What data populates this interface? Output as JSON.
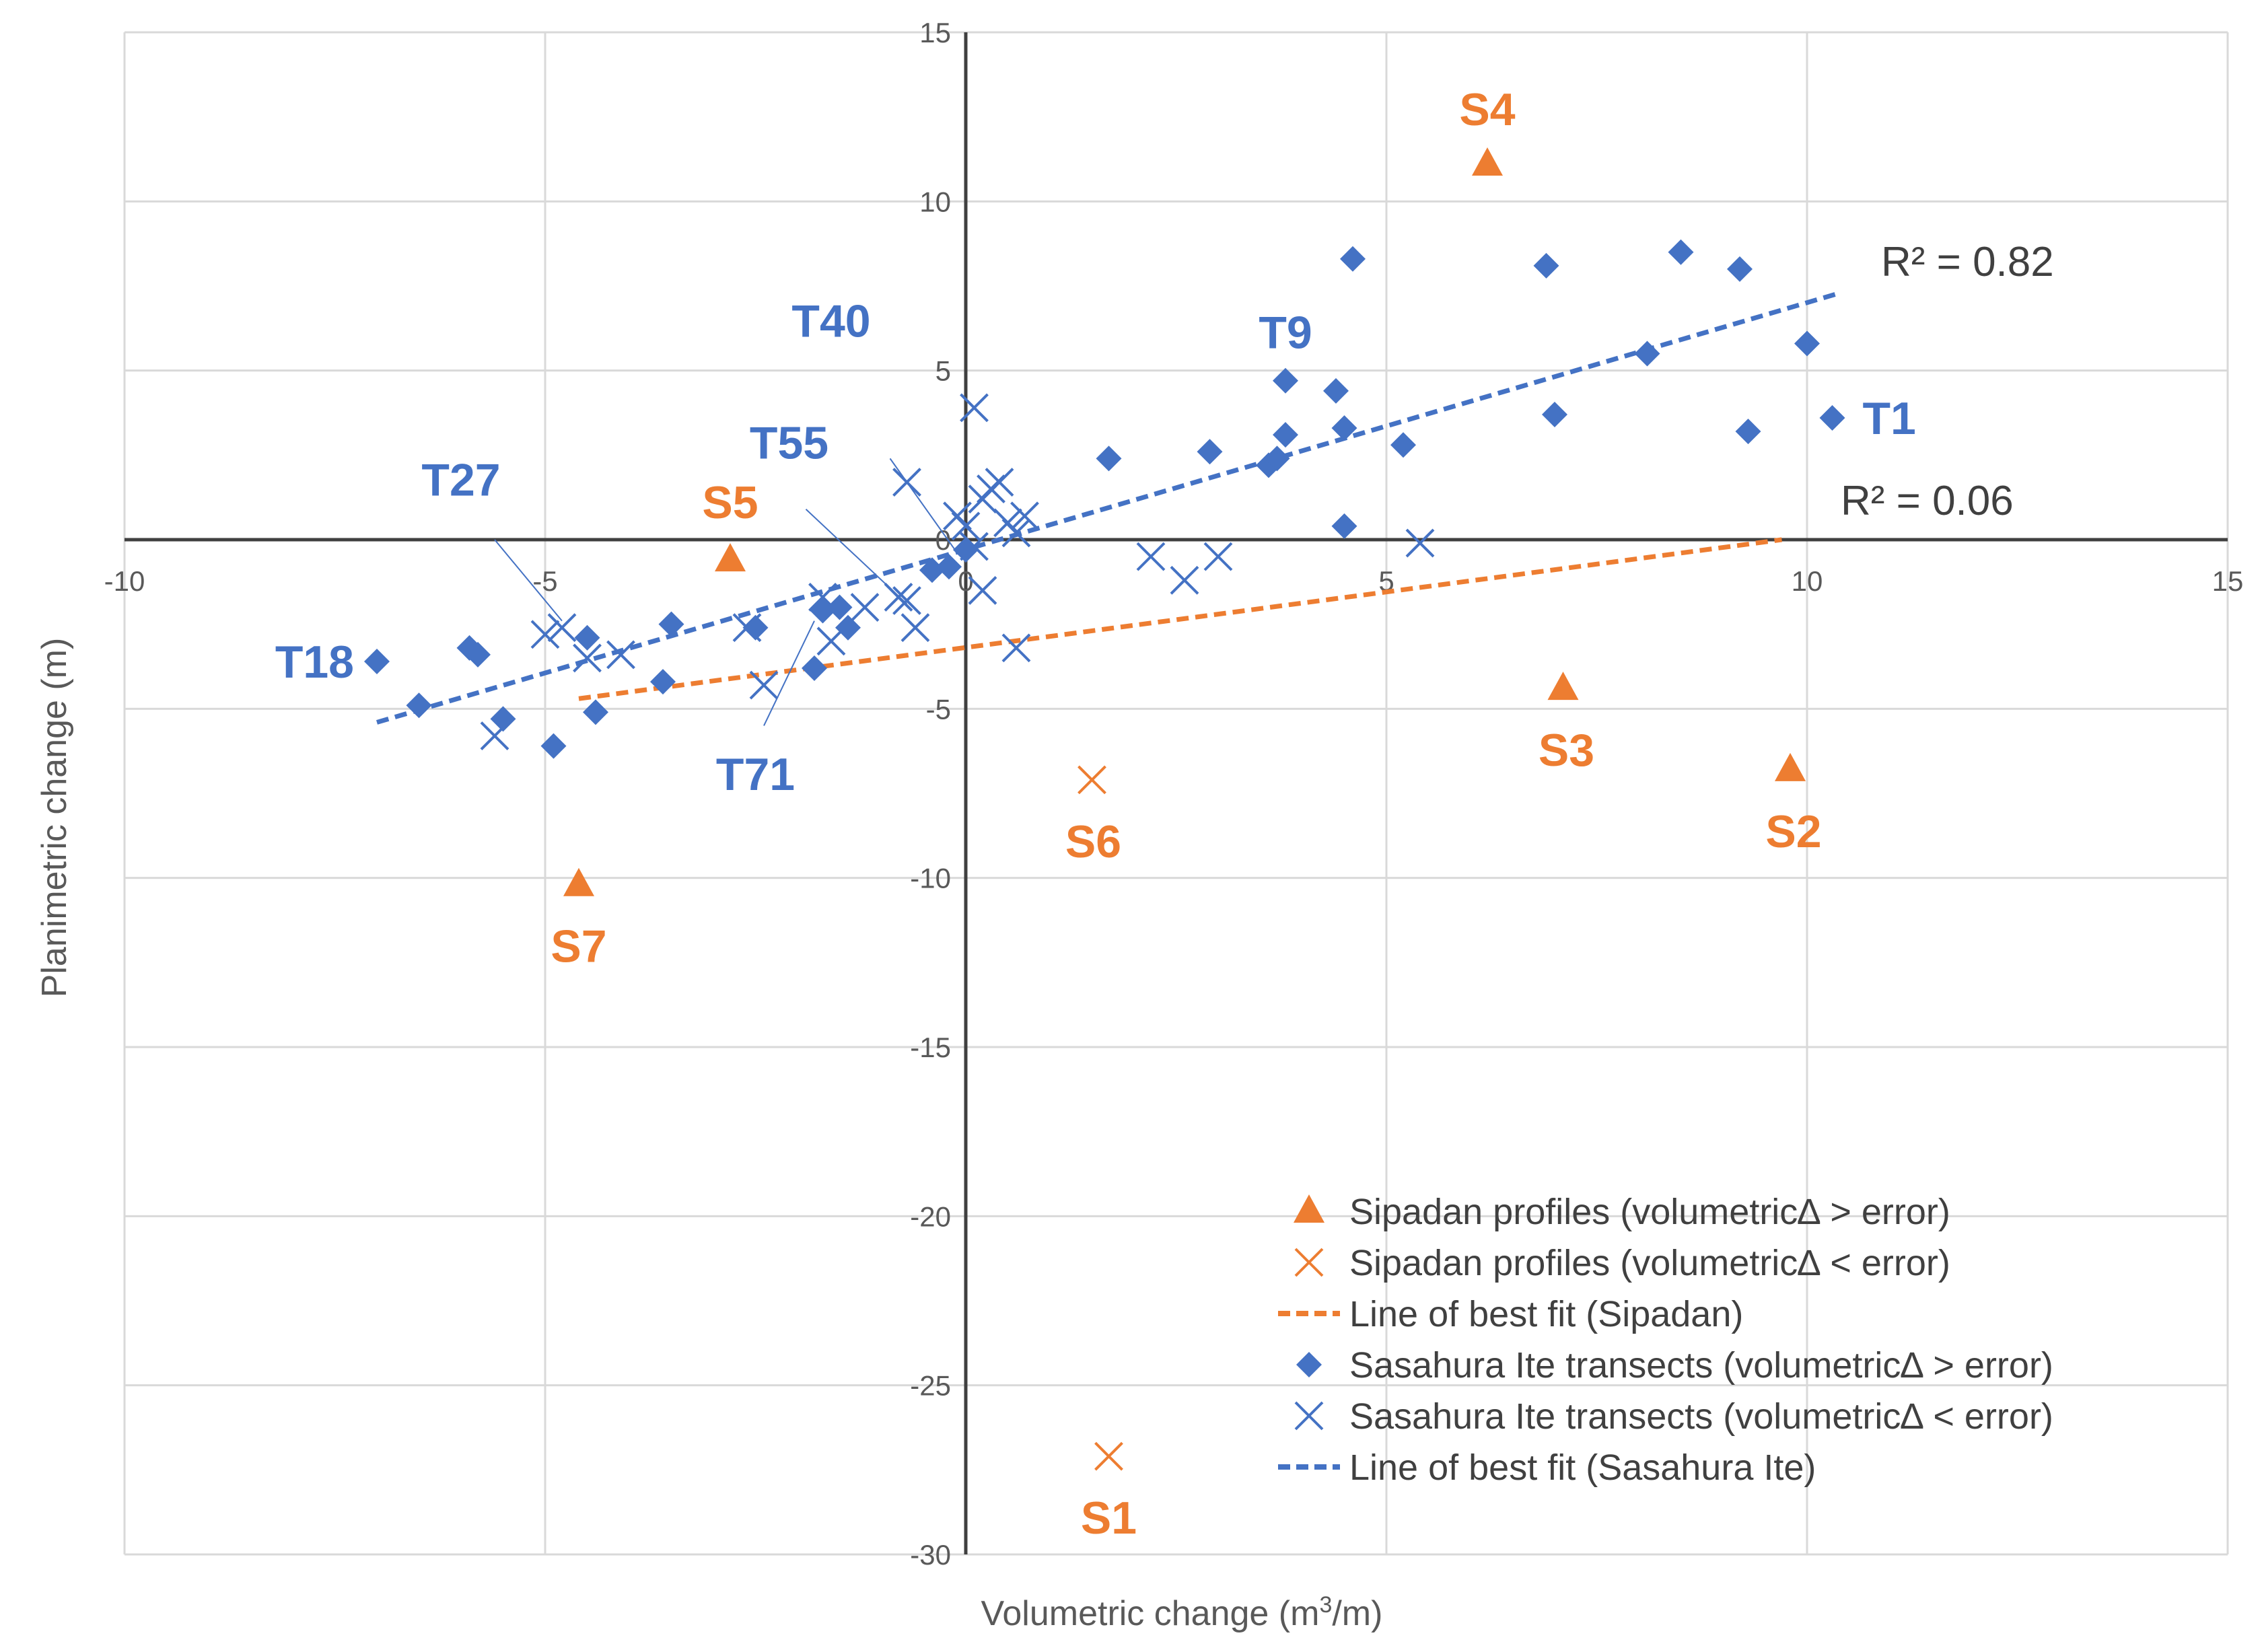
{
  "chart_data": {
    "type": "scatter",
    "xlabel_prefix": "Volumetric change (m",
    "xlabel_sup": "3",
    "xlabel_suffix": "/m)",
    "ylabel": "Planimetric change (m)",
    "xlim": [
      -10,
      15
    ],
    "ylim": [
      -30,
      15
    ],
    "x_ticks": [
      -10,
      -5,
      0,
      5,
      10,
      15
    ],
    "y_ticks": [
      15,
      10,
      5,
      0,
      -5,
      -10,
      -15,
      -20,
      -25,
      -30
    ],
    "grid": true,
    "colors": {
      "blue": "#4472C4",
      "orange": "#ED7D31",
      "grid": "#D9D9D9",
      "axis": "#404040"
    },
    "series": [
      {
        "name": "Sipadan profiles (volumetric∆ > error)",
        "marker": "triangle",
        "color": "#ED7D31",
        "points": [
          [
            6.2,
            11.1
          ],
          [
            9.8,
            -6.8
          ],
          [
            7.1,
            -4.4
          ],
          [
            -2.8,
            -0.6
          ],
          [
            -4.6,
            -10.2
          ]
        ]
      },
      {
        "name": "Sipadan profiles (volumetric∆ < error)",
        "marker": "x",
        "color": "#ED7D31",
        "points": [
          [
            1.5,
            -7.1
          ],
          [
            1.7,
            -27.1
          ]
        ]
      },
      {
        "name": "Line of best fit (Sipadan)",
        "marker": "dashed-line",
        "color": "#ED7D31",
        "line": [
          [
            -4.6,
            -4.7
          ],
          [
            9.7,
            0.0
          ]
        ]
      },
      {
        "name": "Sasahura Ite transects (volumetric∆ > error)",
        "marker": "diamond",
        "color": "#4472C4",
        "points": [
          [
            -7.0,
            -3.6
          ],
          [
            -6.5,
            -4.9
          ],
          [
            -5.9,
            -3.2
          ],
          [
            -5.8,
            -3.4
          ],
          [
            -5.5,
            -5.3
          ],
          [
            -4.9,
            -6.1
          ],
          [
            -4.5,
            -2.9
          ],
          [
            -4.4,
            -5.1
          ],
          [
            -3.6,
            -4.2
          ],
          [
            -3.5,
            -2.5
          ],
          [
            -2.5,
            -2.6
          ],
          [
            -1.8,
            -3.8
          ],
          [
            -1.7,
            -2.1
          ],
          [
            -1.5,
            -2.0
          ],
          [
            -1.4,
            -2.6
          ],
          [
            -0.4,
            -0.9
          ],
          [
            -0.2,
            -0.8
          ],
          [
            0.0,
            -0.3
          ],
          [
            1.7,
            2.4
          ],
          [
            2.9,
            2.6
          ],
          [
            3.6,
            2.2
          ],
          [
            3.7,
            2.4
          ],
          [
            3.8,
            3.1
          ],
          [
            3.8,
            4.7
          ],
          [
            4.4,
            4.4
          ],
          [
            4.5,
            3.3
          ],
          [
            4.5,
            0.4
          ],
          [
            4.6,
            8.3
          ],
          [
            5.2,
            2.8
          ],
          [
            6.9,
            8.1
          ],
          [
            7.0,
            3.7
          ],
          [
            8.1,
            5.5
          ],
          [
            8.5,
            8.5
          ],
          [
            9.2,
            8.0
          ],
          [
            9.3,
            3.2
          ],
          [
            10.0,
            5.8
          ],
          [
            10.3,
            3.6
          ]
        ]
      },
      {
        "name": "Sasahura Ite transects (volumetric∆ < error)",
        "marker": "x",
        "color": "#4472C4",
        "points": [
          [
            -5.6,
            -5.8
          ],
          [
            -5.0,
            -2.8
          ],
          [
            -4.8,
            -2.6
          ],
          [
            -4.5,
            -3.5
          ],
          [
            -4.1,
            -3.4
          ],
          [
            -2.6,
            -2.6
          ],
          [
            -2.4,
            -4.3
          ],
          [
            -1.7,
            -1.7
          ],
          [
            -1.6,
            -3.0
          ],
          [
            -1.2,
            -2.0
          ],
          [
            -0.8,
            -1.7
          ],
          [
            -0.7,
            -1.8
          ],
          [
            -0.6,
            -2.6
          ],
          [
            -0.7,
            1.7
          ],
          [
            -0.1,
            0.7
          ],
          [
            0.0,
            0.4
          ],
          [
            0.1,
            3.9
          ],
          [
            0.2,
            1.2
          ],
          [
            0.3,
            1.5
          ],
          [
            0.4,
            1.7
          ],
          [
            0.5,
            0.5
          ],
          [
            0.6,
            0.2
          ],
          [
            0.7,
            0.7
          ],
          [
            0.1,
            -0.2
          ],
          [
            0.2,
            -1.5
          ],
          [
            0.6,
            -3.2
          ],
          [
            2.2,
            -0.5
          ],
          [
            2.6,
            -1.2
          ],
          [
            3.0,
            -0.5
          ],
          [
            5.4,
            -0.1
          ]
        ]
      },
      {
        "name": "Line of best fit (Sasahura Ite)",
        "marker": "dashed-line",
        "color": "#4472C4",
        "line": [
          [
            -7.0,
            -5.4
          ],
          [
            10.4,
            7.3
          ]
        ]
      }
    ],
    "annotations": {
      "r2_sasahura": "R² = 0.82",
      "r2_sipadan": "R² = 0.06",
      "labels": [
        {
          "text": "S4",
          "color": "orange",
          "at": [
            6.2,
            11.1
          ],
          "anchor": "middle",
          "dx": 0,
          "dy": -58
        },
        {
          "text": "S5",
          "color": "orange",
          "at": [
            -2.8,
            -0.6
          ],
          "anchor": "middle",
          "dx": 0,
          "dy": -62
        },
        {
          "text": "S3",
          "color": "orange",
          "at": [
            7.1,
            -4.4
          ],
          "anchor": "middle",
          "dx": 5,
          "dy": 115
        },
        {
          "text": "S2",
          "color": "orange",
          "at": [
            9.8,
            -6.8
          ],
          "anchor": "middle",
          "dx": 5,
          "dy": 115
        },
        {
          "text": "S6",
          "color": "orange",
          "at": [
            1.5,
            -7.1
          ],
          "anchor": "middle",
          "dx": 2,
          "dy": 115
        },
        {
          "text": "S7",
          "color": "orange",
          "at": [
            -4.6,
            -10.2
          ],
          "anchor": "middle",
          "dx": 0,
          "dy": 115
        },
        {
          "text": "S1",
          "color": "orange",
          "at": [
            1.7,
            -27.1
          ],
          "anchor": "middle",
          "dx": 0,
          "dy": 115
        },
        {
          "text": "T1",
          "color": "blue",
          "at": [
            10.3,
            3.6
          ],
          "anchor": "start",
          "dx": 45,
          "dy": 24
        },
        {
          "text": "T18",
          "color": "blue",
          "at": [
            -7.0,
            -3.6
          ],
          "anchor": "end",
          "dx": -34,
          "dy": 24
        },
        {
          "text": "T9",
          "color": "blue",
          "at": [
            3.8,
            4.7
          ],
          "anchor": "middle",
          "dx": 0,
          "dy": -48
        },
        {
          "text": "T40",
          "x": -1.6,
          "y": 6.0,
          "color": "blue",
          "anchor": "middle",
          "dx": 0,
          "dy": 0
        },
        {
          "text": "T55",
          "x": -2.1,
          "y": 2.4,
          "color": "blue",
          "anchor": "middle",
          "dx": 0,
          "dy": 0
        },
        {
          "text": "T27",
          "x": -6.0,
          "y": 1.3,
          "color": "blue",
          "anchor": "middle",
          "dx": 0,
          "dy": 0
        },
        {
          "text": "T71",
          "x": -2.5,
          "y": -7.4,
          "color": "blue",
          "anchor": "middle",
          "dx": 0,
          "dy": 0
        }
      ],
      "leaders": [
        {
          "from": [
            -0.9,
            2.4
          ],
          "to": [
            -0.1,
            -0.4
          ]
        },
        {
          "from": [
            -1.9,
            0.9
          ],
          "to": [
            -0.7,
            -1.9
          ]
        },
        {
          "from": [
            -5.6,
            0.0
          ],
          "to": [
            -4.8,
            -2.4
          ]
        },
        {
          "from": [
            -2.4,
            -5.5
          ],
          "to": [
            -1.8,
            -2.4
          ]
        }
      ]
    },
    "legend": {
      "position": "bottom-right",
      "items": [
        {
          "label": "Sipadan profiles (volumetric∆ > error)",
          "marker": "triangle",
          "color": "#ED7D31"
        },
        {
          "label": "Sipadan profiles (volumetric∆ < error)",
          "marker": "x",
          "color": "#ED7D31"
        },
        {
          "label": "Line of best fit (Sipadan)",
          "marker": "dashed-line",
          "color": "#ED7D31"
        },
        {
          "label": "Sasahura Ite transects (volumetric∆ > error)",
          "marker": "diamond",
          "color": "#4472C4"
        },
        {
          "label": "Sasahura Ite transects (volumetric∆ < error)",
          "marker": "x",
          "color": "#4472C4"
        },
        {
          "label": "Line of best fit (Sasahura Ite)",
          "marker": "dashed-line",
          "color": "#4472C4"
        }
      ]
    }
  }
}
